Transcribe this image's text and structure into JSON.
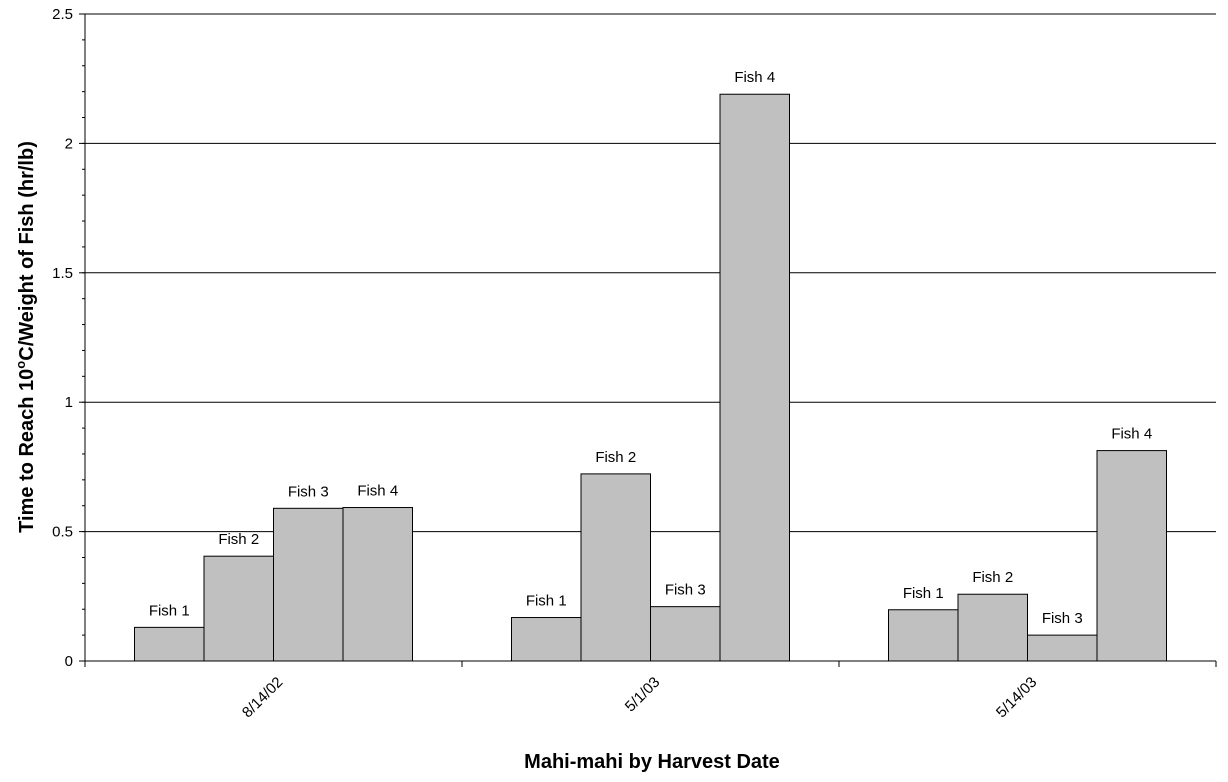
{
  "chart_data": {
    "type": "bar",
    "xlabel": "Mahi-mahi by Harvest Date",
    "ylabel_parts": [
      "Time to Reach 10",
      "o",
      "C/Weight of Fish (hr/lb)"
    ],
    "ylim": [
      0,
      2.5
    ],
    "yticks": [
      "0",
      "0.5",
      "1",
      "1.5",
      "2",
      "2.5"
    ],
    "grid": true,
    "categories": [
      "8/14/02",
      "5/1/03",
      "5/14/03"
    ],
    "groups": [
      {
        "category": "8/14/02",
        "bars": [
          {
            "label": "Fish 1",
            "value": 0.13
          },
          {
            "label": "Fish 2",
            "value": 0.405
          },
          {
            "label": "Fish 3",
            "value": 0.59
          },
          {
            "label": "Fish 4",
            "value": 0.593
          }
        ]
      },
      {
        "category": "5/1/03",
        "bars": [
          {
            "label": "Fish 1",
            "value": 0.168
          },
          {
            "label": "Fish 2",
            "value": 0.723
          },
          {
            "label": "Fish 3",
            "value": 0.21
          },
          {
            "label": "Fish 4",
            "value": 2.19
          }
        ]
      },
      {
        "category": "5/14/03",
        "bars": [
          {
            "label": "Fish 1",
            "value": 0.198
          },
          {
            "label": "Fish 2",
            "value": 0.258
          },
          {
            "label": "Fish 3",
            "value": 0.1
          },
          {
            "label": "Fish 4",
            "value": 0.813
          }
        ]
      }
    ],
    "colors": {
      "bar_fill": "#c0c0c0",
      "bar_stroke": "#000000",
      "grid": "#000000"
    }
  }
}
